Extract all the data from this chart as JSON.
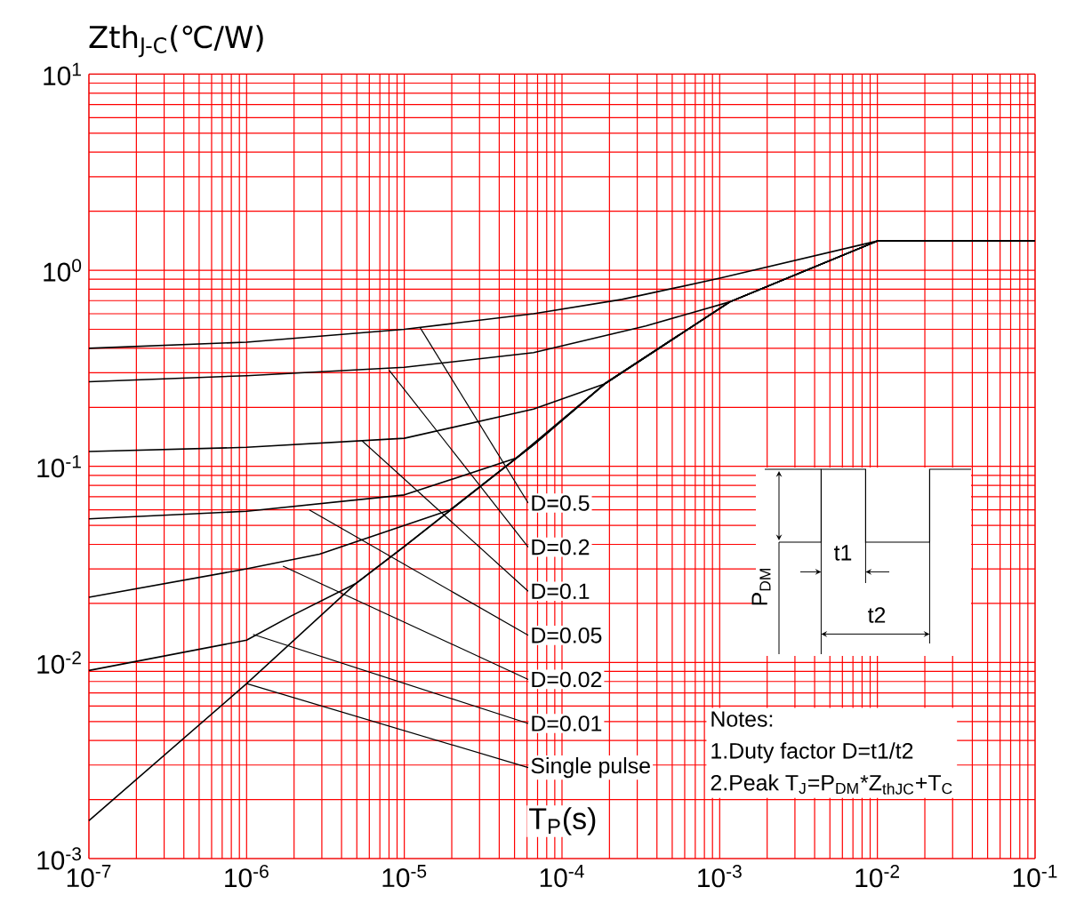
{
  "chart_data": {
    "type": "line",
    "ylabel": "Zth$_{J-C}$(℃/W)",
    "xlabel": "T$_{P}$(s)",
    "log": "xy",
    "grid": true,
    "marker": "none",
    "xlim": [
      1e-07,
      0.1
    ],
    "ylim": [
      0.001,
      10
    ],
    "xticks": [
      {
        "value": 1e-07,
        "label": "10$^{-7}$"
      },
      {
        "value": 1e-06,
        "label": "10$^{-6}$"
      },
      {
        "value": 1e-05,
        "label": "10$^{-5}$"
      },
      {
        "value": 0.0001,
        "label": "10$^{-4}$"
      },
      {
        "value": 0.001,
        "label": "10$^{-3}$"
      },
      {
        "value": 0.01,
        "label": "10$^{-2}$"
      },
      {
        "value": 0.1,
        "label": "10$^{-1}$"
      }
    ],
    "yticks": [
      {
        "value": 0.001,
        "label": "10$^{-3}$"
      },
      {
        "value": 0.01,
        "label": "10$^{-2}$"
      },
      {
        "value": 0.1,
        "label": "10$^{-1}$"
      },
      {
        "value": 1,
        "label": "10$^{0}$"
      },
      {
        "value": 10,
        "label": "10$^{1}$"
      }
    ],
    "series": [
      {
        "color": "#000000",
        "x": [
          1e-07,
          1e-06,
          1e-05,
          6.6e-05,
          0.00024,
          0.001,
          0.01,
          0.1
        ],
        "values": [
          0.4,
          0.43,
          0.5,
          0.6,
          0.71,
          0.91,
          1.41,
          1.41
        ]
      },
      {
        "color": "#000000",
        "x": [
          1e-07,
          1e-06,
          1e-05,
          6.6e-05,
          0.00034,
          0.00116,
          0.01,
          0.1
        ],
        "values": [
          0.27,
          0.29,
          0.32,
          0.38,
          0.52,
          0.69,
          1.41,
          1.41
        ]
      },
      {
        "color": "#000000",
        "x": [
          1e-07,
          1e-06,
          1e-05,
          6.6e-05,
          0.000186,
          0.00116,
          0.01,
          0.1
        ],
        "values": [
          0.119,
          0.125,
          0.139,
          0.196,
          0.263,
          0.69,
          1.41,
          1.41
        ]
      },
      {
        "color": "#000000",
        "x": [
          1e-07,
          1e-06,
          1e-05,
          5.1e-05,
          0.000186,
          0.00116,
          0.01,
          0.1
        ],
        "values": [
          0.054,
          0.059,
          0.0715,
          0.11,
          0.263,
          0.69,
          1.41,
          1.41
        ]
      },
      {
        "color": "#000000",
        "x": [
          1e-07,
          1e-06,
          2.9e-06,
          1.95e-05,
          6.6e-05,
          0.000186,
          0.00116,
          0.01,
          0.1
        ],
        "values": [
          0.0215,
          0.03,
          0.0357,
          0.06,
          0.129,
          0.263,
          0.69,
          1.41,
          1.41
        ]
      },
      {
        "color": "#000000",
        "x": [
          1e-07,
          1e-06,
          1.9e-06,
          4.9e-06,
          1e-05,
          6.6e-05,
          0.000186,
          0.00116,
          0.01,
          0.1
        ],
        "values": [
          0.0091,
          0.013,
          0.0172,
          0.0252,
          0.039,
          0.129,
          0.263,
          0.69,
          1.41,
          1.41
        ]
      },
      {
        "color": "#000000",
        "x": [
          1e-07,
          1e-06,
          4.9e-06,
          1e-05,
          6.6e-05,
          0.000186,
          0.00116,
          0.01,
          0.1
        ],
        "values": [
          0.00156,
          0.0078,
          0.0252,
          0.039,
          0.129,
          0.263,
          0.69,
          1.41,
          1.41
        ]
      }
    ],
    "annotations": [
      {
        "text": "D=0.5",
        "x": 1.26e-05,
        "y": 0.51
      },
      {
        "text": "D=0.2",
        "x": 8e-06,
        "y": 0.31
      },
      {
        "text": "D=0.1",
        "x": 5.4e-06,
        "y": 0.135
      },
      {
        "text": "D=0.05",
        "x": 2.5e-06,
        "y": 0.06
      },
      {
        "text": "D=0.02",
        "x": 1.7e-06,
        "y": 0.031
      },
      {
        "text": "D=0.01",
        "x": 1.1e-06,
        "y": 0.0139
      },
      {
        "text": "Single pulse",
        "x": 1e-06,
        "y": 0.0078
      },
      "Notes:",
      "1.Duty factor D=t1/t2",
      "2.Peak T$_{J}$=P$_{DM}$*Z$_{thJC}$+T$_{C}$",
      "P$_{DM}$",
      "t1",
      "t2"
    ]
  }
}
